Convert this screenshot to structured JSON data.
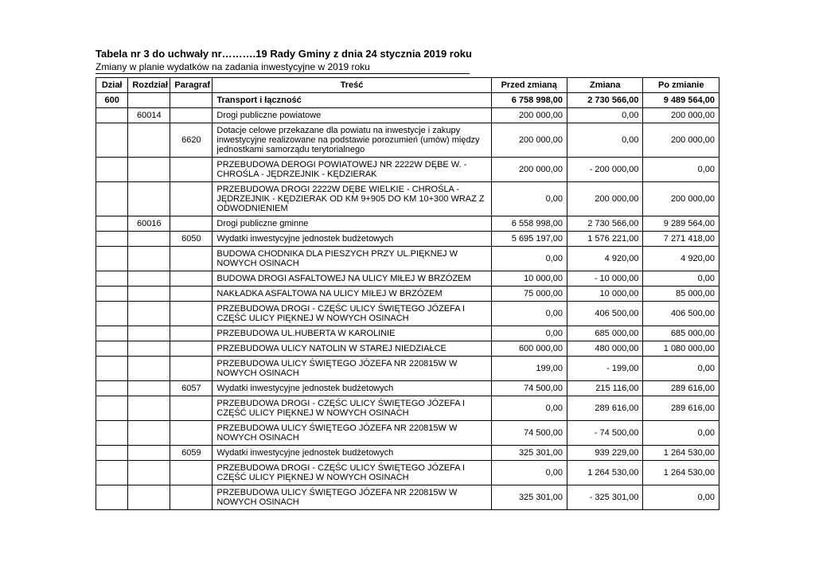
{
  "header": {
    "title_prefix": "Tabela nr 3 do uchwały nr……….19 Rady Gminy z dnia 24 stycznia 2019 roku",
    "subtitle": "Zmiany w planie wydatków na zadania inwestycyjne w 2019 roku"
  },
  "columns": {
    "dzial": "Dział",
    "rozdzial": "Rozdział",
    "paragraf": "Paragraf",
    "tresc": "Treść",
    "przed": "Przed zmianą",
    "zmiana": "Zmiana",
    "po": "Po zmianie"
  },
  "rows": [
    {
      "dzial": "600",
      "rozd": "",
      "para": "",
      "tresc": "Transport i łączność",
      "p": "6 758 998,00",
      "z": "2 730 566,00",
      "po": "9 489 564,00",
      "bold": true
    },
    {
      "dzial": "",
      "rozd": "60014",
      "para": "",
      "tresc": "Drogi publiczne powiatowe",
      "p": "200 000,00",
      "z": "0,00",
      "po": "200 000,00"
    },
    {
      "dzial": "",
      "rozd": "",
      "para": "6620",
      "tresc": "Dotacje celowe przekazane dla powiatu na inwestycje i zakupy inwestycyjne realizowane na podstawie porozumień (umów) między jednostkami samorządu terytorialnego",
      "p": "200 000,00",
      "z": "0,00",
      "po": "200 000,00"
    },
    {
      "dzial": "",
      "rozd": "",
      "para": "",
      "tresc": "PRZEBUDOWA DEROGI POWIATOWEJ NR 2222W DĘBE W. - CHROŚLA - JĘDRZEJNIK - KĘDZIERAK",
      "p": "200 000,00",
      "z": "- 200 000,00",
      "po": "0,00"
    },
    {
      "dzial": "",
      "rozd": "",
      "para": "",
      "tresc": "PRZEBUDOWA DROGI 2222W DĘBE WIELKIE - CHROŚLA - JĘDRZEJNIK - KĘDZIERAK OD KM 9+905 DO KM 10+300 WRAZ Z ODWODNIENIEM",
      "p": "0,00",
      "z": "200 000,00",
      "po": "200 000,00"
    },
    {
      "dzial": "",
      "rozd": "60016",
      "para": "",
      "tresc": "Drogi publiczne gminne",
      "p": "6 558 998,00",
      "z": "2 730 566,00",
      "po": "9 289 564,00"
    },
    {
      "dzial": "",
      "rozd": "",
      "para": "6050",
      "tresc": "Wydatki inwestycyjne jednostek budżetowych",
      "p": "5 695 197,00",
      "z": "1 576 221,00",
      "po": "7 271 418,00"
    },
    {
      "dzial": "",
      "rozd": "",
      "para": "",
      "tresc": "BUDOWA CHODNIKA DLA PIESZYCH PRZY UL.PIĘKNEJ W NOWYCH OSINACH",
      "p": "0,00",
      "z": "4 920,00",
      "po": "4 920,00"
    },
    {
      "dzial": "",
      "rozd": "",
      "para": "",
      "tresc": "BUDOWA DROGI ASFALTOWEJ NA ULICY MIŁEJ W BRZÓZEM",
      "p": "10 000,00",
      "z": "- 10 000,00",
      "po": "0,00"
    },
    {
      "dzial": "",
      "rozd": "",
      "para": "",
      "tresc": "NAKŁADKA ASFALTOWA NA ULICY MIŁEJ W BRZÓZEM",
      "p": "75 000,00",
      "z": "10 000,00",
      "po": "85 000,00"
    },
    {
      "dzial": "",
      "rozd": "",
      "para": "",
      "tresc": "PRZEBUDOWA DROGI - CZĘŚC ULICY ŚWIĘTEGO JÓZEFA I CZĘŚĆ ULICY PIĘKNEJ W NOWYCH OSINACH",
      "p": "0,00",
      "z": "406 500,00",
      "po": "406 500,00"
    },
    {
      "dzial": "",
      "rozd": "",
      "para": "",
      "tresc": "PRZEBUDOWA UL.HUBERTA W KAROLINIE",
      "p": "0,00",
      "z": "685 000,00",
      "po": "685 000,00"
    },
    {
      "dzial": "",
      "rozd": "",
      "para": "",
      "tresc": "PRZEBUDOWA ULICY NATOLIN W STAREJ NIEDZIAŁCE",
      "p": "600 000,00",
      "z": "480 000,00",
      "po": "1 080 000,00"
    },
    {
      "dzial": "",
      "rozd": "",
      "para": "",
      "tresc": "PRZEBUDOWA ULICY ŚWIĘTEGO JÓZEFA NR 220815W W NOWYCH OSINACH",
      "p": "199,00",
      "z": "- 199,00",
      "po": "0,00"
    },
    {
      "dzial": "",
      "rozd": "",
      "para": "6057",
      "tresc": "Wydatki inwestycyjne jednostek budżetowych",
      "p": "74 500,00",
      "z": "215 116,00",
      "po": "289 616,00"
    },
    {
      "dzial": "",
      "rozd": "",
      "para": "",
      "tresc": "PRZEBUDOWA DROGI - CZĘŚC ULICY ŚWIĘTEGO JÓZEFA I CZĘŚĆ ULICY PIĘKNEJ W NOWYCH OSINACH",
      "p": "0,00",
      "z": "289 616,00",
      "po": "289 616,00"
    },
    {
      "dzial": "",
      "rozd": "",
      "para": "",
      "tresc": "PRZEBUDOWA ULICY ŚWIĘTEGO JÓZEFA NR 220815W W NOWYCH OSINACH",
      "p": "74 500,00",
      "z": "- 74 500,00",
      "po": "0,00"
    },
    {
      "dzial": "",
      "rozd": "",
      "para": "6059",
      "tresc": "Wydatki inwestycyjne jednostek budżetowych",
      "p": "325 301,00",
      "z": "939 229,00",
      "po": "1 264 530,00"
    },
    {
      "dzial": "",
      "rozd": "",
      "para": "",
      "tresc": "PRZEBUDOWA DROGI - CZĘŚC ULICY ŚWIĘTEGO JÓZEFA I CZĘŚĆ ULICY PIĘKNEJ W NOWYCH OSINACH",
      "p": "0,00",
      "z": "1 264 530,00",
      "po": "1 264 530,00"
    },
    {
      "dzial": "",
      "rozd": "",
      "para": "",
      "tresc": "PRZEBUDOWA ULICY ŚWIĘTEGO JÓZEFA NR 220815W W NOWYCH OSINACH",
      "p": "325 301,00",
      "z": "- 325 301,00",
      "po": "0,00"
    }
  ]
}
